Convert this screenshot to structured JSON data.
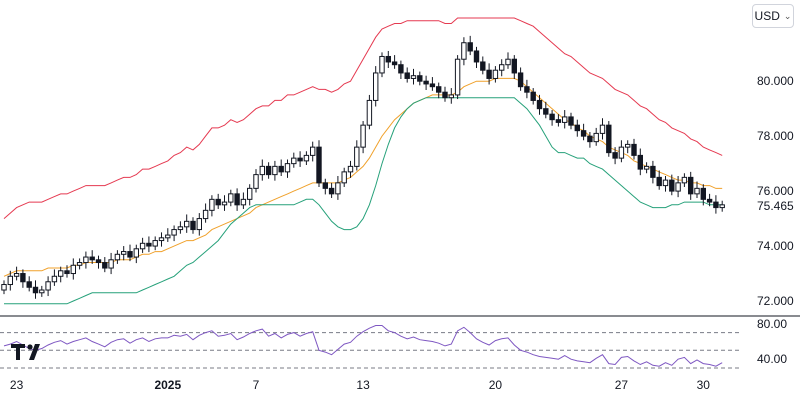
{
  "currency": {
    "label": "USD"
  },
  "chart_data": {
    "type": "candlestick",
    "price_axis": {
      "ylim": [
        71.6,
        82.3
      ],
      "ticks": [
        72.0,
        74.0,
        76.0,
        78.0,
        80.0
      ],
      "tick_labels": [
        "72.000",
        "74.000",
        "76.000",
        "78.000",
        "80.000"
      ]
    },
    "last_price": {
      "value": 75.465,
      "label": "75.465"
    },
    "x_axis": {
      "labels": [
        {
          "text": "23",
          "index": 2,
          "bold": false
        },
        {
          "text": "2025",
          "index": 26,
          "bold": true
        },
        {
          "text": "7",
          "index": 40,
          "bold": false
        },
        {
          "text": "13",
          "index": 57,
          "bold": false
        },
        {
          "text": "20",
          "index": 78,
          "bold": false
        },
        {
          "text": "27",
          "index": 98,
          "bold": false
        },
        {
          "text": "30",
          "index": 111,
          "bold": false
        }
      ]
    },
    "rsi_axis": {
      "ylim": [
        30,
        82
      ],
      "ticks": [
        40,
        80
      ],
      "tick_labels": [
        "40.00",
        "80.00"
      ],
      "bands": [
        30,
        50,
        70
      ]
    },
    "close": [
      72.6,
      72.9,
      73.0,
      72.7,
      72.5,
      72.3,
      72.4,
      72.7,
      72.9,
      73.1,
      73.0,
      73.3,
      73.4,
      73.6,
      73.5,
      73.4,
      73.2,
      73.5,
      73.7,
      73.8,
      73.6,
      73.9,
      74.1,
      74.0,
      74.2,
      74.3,
      74.4,
      74.6,
      74.7,
      74.9,
      74.6,
      75.0,
      75.3,
      75.7,
      75.5,
      75.6,
      75.9,
      75.5,
      75.7,
      76.1,
      76.6,
      76.9,
      76.6,
      76.9,
      76.7,
      77.0,
      77.2,
      77.1,
      77.3,
      77.6,
      76.3,
      76.1,
      75.9,
      76.3,
      76.7,
      76.9,
      77.6,
      78.4,
      79.3,
      80.3,
      80.9,
      80.7,
      80.6,
      80.3,
      80.1,
      80.2,
      80.0,
      79.9,
      79.8,
      79.6,
      79.4,
      79.5,
      80.8,
      81.4,
      81.1,
      80.7,
      80.4,
      80.1,
      80.4,
      80.6,
      80.8,
      80.3,
      79.8,
      79.6,
      79.3,
      79.0,
      78.8,
      78.6,
      78.5,
      78.7,
      78.4,
      78.2,
      78.0,
      77.8,
      78.1,
      78.4,
      77.4,
      77.2,
      77.6,
      77.7,
      77.3,
      76.8,
      76.9,
      76.5,
      76.2,
      76.4,
      76.0,
      76.3,
      76.5,
      75.9,
      76.1,
      75.7,
      75.6,
      75.4,
      75.5
    ],
    "series": [
      {
        "name": "",
        "values": [
          75.0,
          75.2,
          75.4,
          75.5,
          75.6,
          75.6,
          75.6,
          75.7,
          75.8,
          75.9,
          75.9,
          76.0,
          76.1,
          76.2,
          76.2,
          76.2,
          76.2,
          76.3,
          76.4,
          76.5,
          76.5,
          76.6,
          76.8,
          76.8,
          76.9,
          77.0,
          77.1,
          77.3,
          77.4,
          77.6,
          77.5,
          77.7,
          78.0,
          78.3,
          78.3,
          78.4,
          78.6,
          78.5,
          78.6,
          78.8,
          79.0,
          79.1,
          79.1,
          79.3,
          79.3,
          79.5,
          79.5,
          79.6,
          79.7,
          79.8,
          79.7,
          79.7,
          79.6,
          79.7,
          79.9,
          80.0,
          80.4,
          80.8,
          81.2,
          81.6,
          81.9,
          82.0,
          82.1,
          82.1,
          82.2,
          82.2,
          82.2,
          82.2,
          82.2,
          82.2,
          82.1,
          82.1,
          82.3,
          82.3,
          82.3,
          82.3,
          82.3,
          82.3,
          82.3,
          82.3,
          82.3,
          82.3,
          82.2,
          82.1,
          82.0,
          81.8,
          81.6,
          81.4,
          81.2,
          81.0,
          80.9,
          80.7,
          80.5,
          80.3,
          80.2,
          80.1,
          79.9,
          79.7,
          79.6,
          79.5,
          79.3,
          79.1,
          79.0,
          78.8,
          78.6,
          78.5,
          78.3,
          78.2,
          78.1,
          77.9,
          77.8,
          77.6,
          77.5,
          77.4,
          77.3
        ]
      },
      {
        "name": "",
        "values": [
          72.9,
          73.0,
          73.1,
          73.1,
          73.1,
          73.1,
          73.1,
          73.2,
          73.2,
          73.2,
          73.2,
          73.3,
          73.3,
          73.4,
          73.4,
          73.4,
          73.4,
          73.4,
          73.5,
          73.5,
          73.5,
          73.6,
          73.7,
          73.7,
          73.8,
          73.8,
          73.9,
          74.0,
          74.1,
          74.2,
          74.2,
          74.3,
          74.4,
          74.6,
          74.7,
          74.8,
          74.9,
          75.0,
          75.1,
          75.2,
          75.4,
          75.5,
          75.6,
          75.7,
          75.8,
          75.9,
          76.0,
          76.1,
          76.2,
          76.3,
          76.3,
          76.3,
          76.3,
          76.3,
          76.4,
          76.5,
          76.7,
          76.9,
          77.2,
          77.6,
          78.0,
          78.3,
          78.6,
          78.8,
          79.0,
          79.2,
          79.3,
          79.4,
          79.5,
          79.5,
          79.5,
          79.5,
          79.6,
          79.8,
          79.9,
          80.0,
          80.0,
          80.0,
          80.1,
          80.1,
          80.1,
          80.1,
          80.0,
          79.8,
          79.6,
          79.4,
          79.2,
          79.0,
          78.8,
          78.6,
          78.5,
          78.3,
          78.2,
          78.0,
          77.9,
          77.8,
          77.6,
          77.5,
          77.4,
          77.3,
          77.1,
          77.0,
          76.9,
          76.8,
          76.7,
          76.6,
          76.5,
          76.4,
          76.4,
          76.3,
          76.3,
          76.2,
          76.2,
          76.1,
          76.1
        ]
      },
      {
        "name": "",
        "values": [
          71.9,
          71.9,
          71.9,
          71.9,
          71.9,
          71.9,
          71.9,
          71.9,
          71.9,
          71.9,
          71.9,
          72.0,
          72.1,
          72.2,
          72.3,
          72.3,
          72.3,
          72.3,
          72.3,
          72.3,
          72.3,
          72.3,
          72.4,
          72.5,
          72.6,
          72.7,
          72.8,
          72.9,
          73.1,
          73.3,
          73.4,
          73.6,
          73.8,
          74.0,
          74.2,
          74.5,
          74.8,
          75.0,
          75.2,
          75.4,
          75.5,
          75.5,
          75.5,
          75.5,
          75.5,
          75.5,
          75.5,
          75.6,
          75.7,
          75.7,
          75.5,
          75.2,
          74.9,
          74.7,
          74.6,
          74.6,
          74.7,
          75.0,
          75.5,
          76.2,
          77.0,
          77.7,
          78.3,
          78.7,
          79.0,
          79.2,
          79.3,
          79.4,
          79.4,
          79.4,
          79.4,
          79.4,
          79.4,
          79.4,
          79.4,
          79.4,
          79.4,
          79.4,
          79.4,
          79.4,
          79.4,
          79.4,
          79.2,
          79.0,
          78.7,
          78.4,
          78.0,
          77.6,
          77.4,
          77.4,
          77.3,
          77.2,
          77.2,
          77.0,
          76.9,
          76.8,
          76.6,
          76.4,
          76.2,
          76.0,
          75.8,
          75.6,
          75.5,
          75.4,
          75.4,
          75.4,
          75.5,
          75.5,
          75.6,
          75.6,
          75.6,
          75.6,
          75.5,
          75.5,
          75.5
        ]
      }
    ],
    "rsi": [
      55,
      57,
      60,
      56,
      52,
      50,
      52,
      56,
      59,
      61,
      57,
      60,
      62,
      64,
      60,
      57,
      54,
      59,
      62,
      63,
      58,
      62,
      64,
      60,
      63,
      64,
      64,
      67,
      66,
      68,
      62,
      67,
      70,
      72,
      66,
      67,
      69,
      62,
      65,
      69,
      72,
      74,
      66,
      69,
      64,
      68,
      70,
      66,
      69,
      71,
      50,
      48,
      45,
      51,
      57,
      59,
      66,
      71,
      75,
      78,
      78,
      72,
      70,
      66,
      63,
      65,
      62,
      61,
      60,
      58,
      55,
      57,
      72,
      76,
      70,
      63,
      59,
      56,
      61,
      63,
      64,
      56,
      50,
      48,
      45,
      43,
      42,
      41,
      40,
      44,
      40,
      38,
      37,
      36,
      41,
      45,
      35,
      34,
      42,
      43,
      38,
      34,
      37,
      33,
      32,
      36,
      33,
      40,
      42,
      35,
      39,
      35,
      34,
      32,
      36
    ],
    "colors": {
      "upper": "#e53950",
      "middle": "#f0a12b",
      "lower": "#26a17a",
      "rsi": "#7e57c2",
      "candle": "#131722"
    }
  }
}
